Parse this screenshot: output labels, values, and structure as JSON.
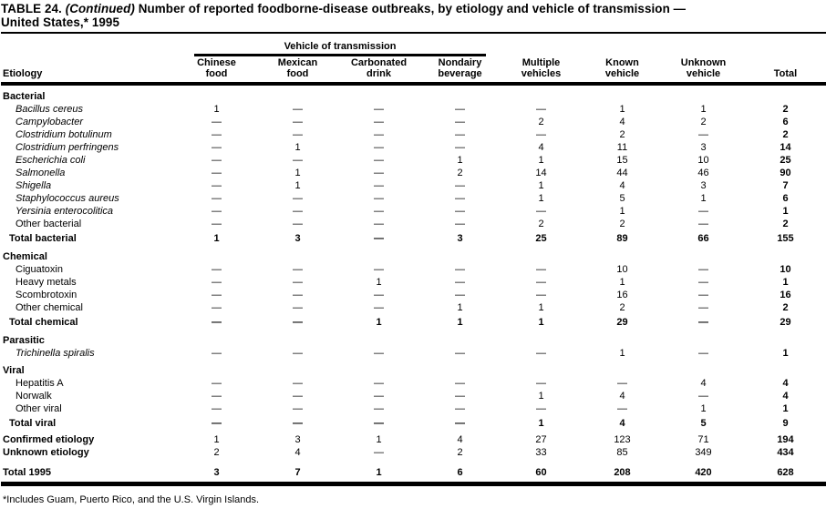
{
  "title": {
    "part1": "TABLE 24.",
    "continued": "(Continued)",
    "part2": "Number of reported foodborne-disease outbreaks, by etiology and vehicle of transmission —",
    "line2": "United States,* 1995"
  },
  "colors": {
    "text": "#000000",
    "background": "#ffffff",
    "rule": "#000000"
  },
  "table": {
    "spanner": "Vehicle of transmission",
    "etiology_header": "Etiology",
    "columns": [
      {
        "line1": "Chinese",
        "line2": "food"
      },
      {
        "line1": "Mexican",
        "line2": "food"
      },
      {
        "line1": "Carbonated",
        "line2": "drink"
      },
      {
        "line1": "Nondairy",
        "line2": "beverage"
      },
      {
        "line1": "Multiple",
        "line2": "vehicles"
      },
      {
        "line1": "Known",
        "line2": "vehicle"
      },
      {
        "line1": "Unknown",
        "line2": "vehicle"
      },
      {
        "line1": "",
        "line2": "Total"
      }
    ],
    "rows": [
      {
        "type": "section",
        "label": "Bacterial",
        "values": [
          "",
          "",
          "",
          "",
          "",
          "",
          "",
          ""
        ]
      },
      {
        "type": "species",
        "label": "Bacillus cereus",
        "values": [
          "1",
          "—",
          "—",
          "—",
          "—",
          "1",
          "1",
          "2"
        ]
      },
      {
        "type": "species",
        "label": "Campylobacter",
        "values": [
          "—",
          "—",
          "—",
          "—",
          "2",
          "4",
          "2",
          "6"
        ]
      },
      {
        "type": "species",
        "label": "Clostridium botulinum",
        "values": [
          "—",
          "—",
          "—",
          "—",
          "—",
          "2",
          "—",
          "2"
        ]
      },
      {
        "type": "species",
        "label": "Clostridium perfringens",
        "values": [
          "—",
          "1",
          "—",
          "—",
          "4",
          "11",
          "3",
          "14"
        ]
      },
      {
        "type": "species",
        "label": "Escherichia coli",
        "values": [
          "—",
          "—",
          "—",
          "1",
          "1",
          "15",
          "10",
          "25"
        ]
      },
      {
        "type": "species",
        "label": "Salmonella",
        "values": [
          "—",
          "1",
          "—",
          "2",
          "14",
          "44",
          "46",
          "90"
        ]
      },
      {
        "type": "species",
        "label": "Shigella",
        "values": [
          "—",
          "1",
          "—",
          "—",
          "1",
          "4",
          "3",
          "7"
        ]
      },
      {
        "type": "species",
        "label": "Staphylococcus aureus",
        "values": [
          "—",
          "—",
          "—",
          "—",
          "1",
          "5",
          "1",
          "6"
        ]
      },
      {
        "type": "species",
        "label": "Yersinia enterocolitica",
        "values": [
          "—",
          "—",
          "—",
          "—",
          "—",
          "1",
          "—",
          "1"
        ]
      },
      {
        "type": "item",
        "label": "Other bacterial",
        "values": [
          "—",
          "—",
          "—",
          "—",
          "2",
          "2",
          "—",
          "2"
        ]
      },
      {
        "type": "total",
        "label": "Total bacterial",
        "values": [
          "1",
          "3",
          "—",
          "3",
          "25",
          "89",
          "66",
          "155"
        ]
      },
      {
        "type": "section",
        "label": "Chemical",
        "values": [
          "",
          "",
          "",
          "",
          "",
          "",
          "",
          ""
        ]
      },
      {
        "type": "item",
        "label": "Ciguatoxin",
        "values": [
          "—",
          "—",
          "—",
          "—",
          "—",
          "10",
          "—",
          "10"
        ]
      },
      {
        "type": "item",
        "label": "Heavy metals",
        "values": [
          "—",
          "—",
          "1",
          "—",
          "—",
          "1",
          "—",
          "1"
        ]
      },
      {
        "type": "item",
        "label": "Scombrotoxin",
        "values": [
          "—",
          "—",
          "—",
          "—",
          "—",
          "16",
          "—",
          "16"
        ]
      },
      {
        "type": "item",
        "label": "Other chemical",
        "values": [
          "—",
          "—",
          "—",
          "1",
          "1",
          "2",
          "—",
          "2"
        ]
      },
      {
        "type": "total",
        "label": "Total chemical",
        "values": [
          "—",
          "—",
          "1",
          "1",
          "1",
          "29",
          "—",
          "29"
        ]
      },
      {
        "type": "section",
        "label": "Parasitic",
        "values": [
          "",
          "",
          "",
          "",
          "",
          "",
          "",
          ""
        ]
      },
      {
        "type": "species",
        "label": "Trichinella spiralis",
        "values": [
          "—",
          "—",
          "—",
          "—",
          "—",
          "1",
          "—",
          "1"
        ]
      },
      {
        "type": "section",
        "label": "Viral",
        "values": [
          "",
          "",
          "",
          "",
          "",
          "",
          "",
          ""
        ]
      },
      {
        "type": "item",
        "label": "Hepatitis A",
        "values": [
          "—",
          "—",
          "—",
          "—",
          "—",
          "—",
          "4",
          "4"
        ]
      },
      {
        "type": "item",
        "label": "Norwalk",
        "values": [
          "—",
          "—",
          "—",
          "—",
          "1",
          "4",
          "—",
          "4"
        ]
      },
      {
        "type": "item",
        "label": "Other viral",
        "values": [
          "—",
          "—",
          "—",
          "—",
          "—",
          "—",
          "1",
          "1"
        ]
      },
      {
        "type": "total",
        "label": "Total viral",
        "values": [
          "—",
          "—",
          "—",
          "—",
          "1",
          "4",
          "5",
          "9"
        ]
      },
      {
        "type": "summary",
        "label": "Confirmed etiology",
        "values": [
          "1",
          "3",
          "1",
          "4",
          "27",
          "123",
          "71",
          "194"
        ]
      },
      {
        "type": "summary",
        "label": "Unknown etiology",
        "values": [
          "2",
          "4",
          "—",
          "2",
          "33",
          "85",
          "349",
          "434"
        ]
      },
      {
        "type": "grandtotal",
        "label": "Total 1995",
        "values": [
          "3",
          "7",
          "1",
          "6",
          "60",
          "208",
          "420",
          "628"
        ]
      }
    ]
  },
  "footnote": "*Includes Guam, Puerto Rico, and the U.S. Virgin Islands."
}
